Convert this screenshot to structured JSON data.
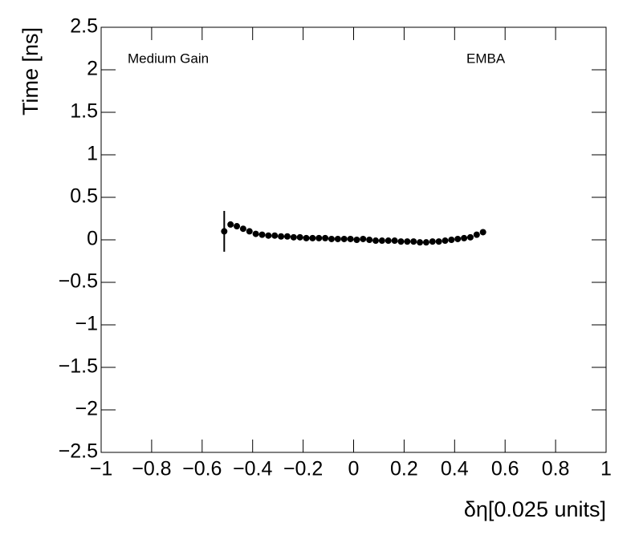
{
  "chart_data": {
    "type": "scatter",
    "x_label": "δη[0.025 units]",
    "y_label": "Time [ns]",
    "annotations": [
      "Medium Gain",
      "EMBA"
    ],
    "color": "#000000",
    "x": [
      -0.5125,
      -0.4875,
      -0.4625,
      -0.4375,
      -0.4125,
      -0.3875,
      -0.3625,
      -0.3375,
      -0.3125,
      -0.2875,
      -0.2625,
      -0.2375,
      -0.2125,
      -0.1875,
      -0.1625,
      -0.1375,
      -0.1125,
      -0.0875,
      -0.0625,
      -0.0375,
      -0.0125,
      0.0125,
      0.0375,
      0.0625,
      0.0875,
      0.1125,
      0.1375,
      0.1625,
      0.1875,
      0.2125,
      0.2375,
      0.2625,
      0.2875,
      0.3125,
      0.3375,
      0.3625,
      0.3875,
      0.4125,
      0.4375,
      0.4625,
      0.4875,
      0.5125
    ],
    "values": [
      0.1,
      0.18,
      0.16,
      0.13,
      0.1,
      0.07,
      0.06,
      0.05,
      0.05,
      0.04,
      0.04,
      0.03,
      0.03,
      0.02,
      0.02,
      0.02,
      0.02,
      0.01,
      0.01,
      0.01,
      0.01,
      0.0,
      0.01,
      0.0,
      -0.01,
      -0.01,
      -0.01,
      -0.01,
      -0.02,
      -0.02,
      -0.02,
      -0.03,
      -0.03,
      -0.02,
      -0.02,
      -0.01,
      0.0,
      0.01,
      0.02,
      0.03,
      0.06,
      0.09
    ],
    "errors": [
      0.24,
      0.01,
      0.01,
      0.01,
      0.01,
      0.01,
      0.01,
      0.01,
      0.01,
      0.01,
      0.01,
      0.01,
      0.01,
      0.01,
      0.01,
      0.01,
      0.01,
      0.01,
      0.01,
      0.01,
      0.01,
      0.01,
      0.01,
      0.01,
      0.01,
      0.01,
      0.01,
      0.01,
      0.01,
      0.01,
      0.01,
      0.01,
      0.01,
      0.01,
      0.01,
      0.01,
      0.01,
      0.01,
      0.01,
      0.01,
      0.01,
      0.01
    ],
    "xlim": [
      -1,
      1
    ],
    "ylim": [
      -2.5,
      2.5
    ],
    "xticks": [
      {
        "value": -1,
        "label": "−1"
      },
      {
        "value": -0.8,
        "label": "−0.8"
      },
      {
        "value": -0.6,
        "label": "−0.6"
      },
      {
        "value": -0.4,
        "label": "−0.4"
      },
      {
        "value": -0.2,
        "label": "−0.2"
      },
      0,
      0.2,
      0.4,
      0.6,
      0.8,
      1
    ],
    "yticks": [
      {
        "value": -2.5,
        "label": "−2.5"
      },
      {
        "value": -2,
        "label": "−2"
      },
      {
        "value": -1.5,
        "label": "−1.5"
      },
      {
        "value": -1,
        "label": "−1"
      },
      {
        "value": -0.5,
        "label": "−0.5"
      },
      0,
      0.5,
      1,
      1.5,
      2,
      2.5
    ]
  }
}
